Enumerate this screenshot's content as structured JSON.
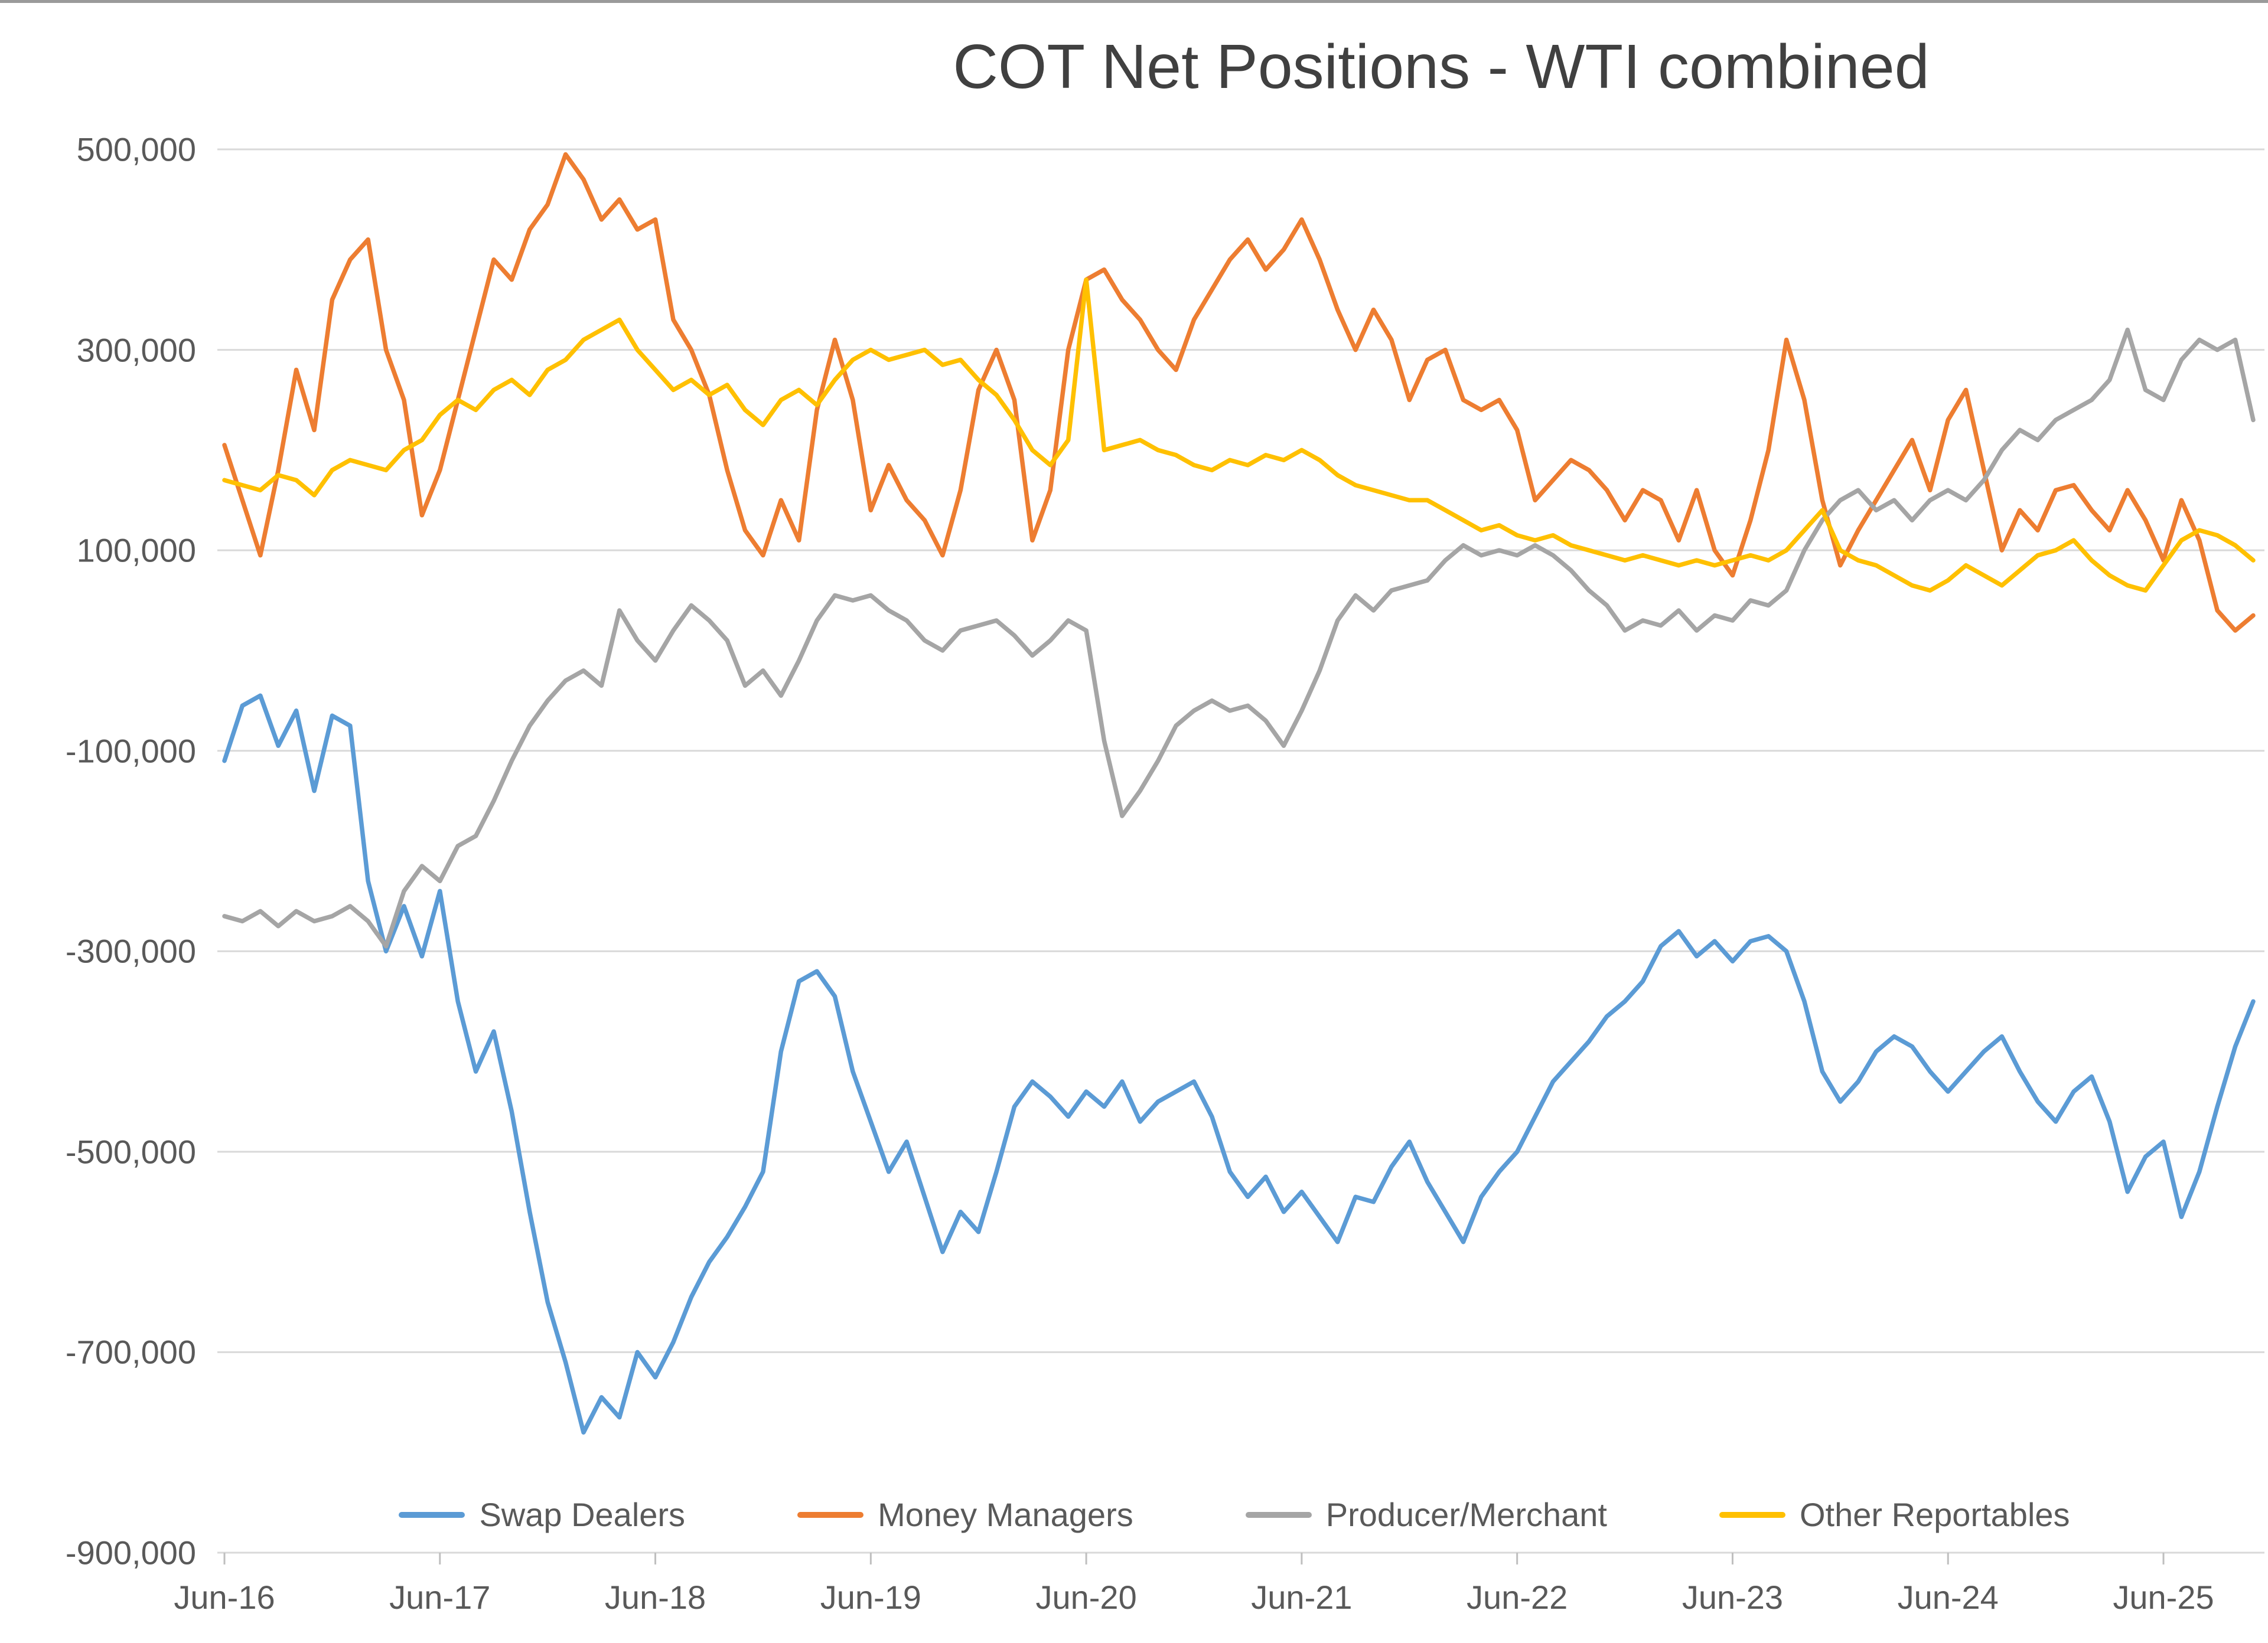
{
  "chart_data": {
    "type": "line",
    "title": "COT Net Positions - WTI combined",
    "legend_position": "bottom",
    "grid": "horizontal",
    "background": "#FFFFFF",
    "colors": {
      "gridline": "#D9D9D9",
      "tick": "#BFBFBF",
      "axis_text": "#595959",
      "title_text": "#404040"
    },
    "y_axis": {
      "min": -900000,
      "max": 500000,
      "ticks": [
        500000,
        300000,
        100000,
        -100000,
        -300000,
        -500000,
        -700000,
        -900000
      ],
      "labels": [
        "500,000",
        "300,000",
        "100,000",
        "-100,000",
        "-300,000",
        "-500,000",
        "-700,000",
        "-900,000"
      ]
    },
    "x_axis": {
      "labels": [
        "Jun-16",
        "Jun-17",
        "Jun-18",
        "Jun-19",
        "Jun-20",
        "Jun-21",
        "Jun-22",
        "Jun-23",
        "Jun-24",
        "Jun-25"
      ],
      "tick_indices": [
        0,
        12,
        24,
        36,
        48,
        60,
        72,
        84,
        96,
        108
      ],
      "points_per_series": 114,
      "interval": "monthly (approx, Jun-2016 to Oct-2025)"
    },
    "series": [
      {
        "id": "swap-dealers",
        "name": "Swap Dealers",
        "color": "#5B9BD5",
        "values": [
          -110000,
          -55000,
          -45000,
          -95000,
          -60000,
          -140000,
          -65000,
          -75000,
          -230000,
          -300000,
          -255000,
          -305000,
          -240000,
          -350000,
          -420000,
          -380000,
          -460000,
          -560000,
          -650000,
          -710000,
          -780000,
          -745000,
          -765000,
          -700000,
          -725000,
          -690000,
          -645000,
          -610000,
          -585000,
          -555000,
          -520000,
          -400000,
          -330000,
          -320000,
          -345000,
          -420000,
          -470000,
          -520000,
          -490000,
          -545000,
          -600000,
          -560000,
          -580000,
          -520000,
          -455000,
          -430000,
          -445000,
          -465000,
          -440000,
          -455000,
          -430000,
          -470000,
          -450000,
          -440000,
          -430000,
          -465000,
          -520000,
          -545000,
          -525000,
          -560000,
          -540000,
          -565000,
          -590000,
          -545000,
          -550000,
          -515000,
          -490000,
          -530000,
          -560000,
          -590000,
          -545000,
          -520000,
          -500000,
          -465000,
          -430000,
          -410000,
          -390000,
          -365000,
          -350000,
          -330000,
          -295000,
          -280000,
          -305000,
          -290000,
          -310000,
          -290000,
          -285000,
          -300000,
          -350000,
          -420000,
          -450000,
          -430000,
          -400000,
          -385000,
          -395000,
          -420000,
          -440000,
          -420000,
          -400000,
          -385000,
          -420000,
          -450000,
          -470000,
          -440000,
          -425000,
          -470000,
          -540000,
          -505000,
          -490000,
          -565000,
          -520000,
          -455000,
          -395000,
          -350000
        ]
      },
      {
        "id": "money-managers",
        "name": "Money Managers",
        "color": "#ED7D31",
        "values": [
          205000,
          150000,
          95000,
          180000,
          280000,
          220000,
          350000,
          390000,
          410000,
          300000,
          250000,
          135000,
          180000,
          250000,
          320000,
          390000,
          370000,
          420000,
          445000,
          495000,
          470000,
          430000,
          450000,
          420000,
          430000,
          330000,
          300000,
          255000,
          180000,
          120000,
          95000,
          150000,
          110000,
          240000,
          310000,
          250000,
          140000,
          185000,
          150000,
          130000,
          95000,
          160000,
          260000,
          300000,
          250000,
          110000,
          160000,
          300000,
          370000,
          380000,
          350000,
          330000,
          300000,
          280000,
          330000,
          360000,
          390000,
          410000,
          380000,
          400000,
          430000,
          390000,
          340000,
          300000,
          340000,
          310000,
          250000,
          290000,
          300000,
          250000,
          240000,
          250000,
          220000,
          150000,
          170000,
          190000,
          180000,
          160000,
          130000,
          160000,
          150000,
          110000,
          160000,
          100000,
          75000,
          130000,
          200000,
          310000,
          250000,
          150000,
          85000,
          120000,
          150000,
          180000,
          210000,
          160000,
          230000,
          260000,
          180000,
          100000,
          140000,
          120000,
          160000,
          165000,
          140000,
          120000,
          160000,
          130000,
          90000,
          150000,
          110000,
          40000,
          20000,
          35000
        ]
      },
      {
        "id": "producer-merchant",
        "name": "Producer/Merchant",
        "color": "#A5A5A5",
        "values": [
          -265000,
          -270000,
          -260000,
          -275000,
          -260000,
          -270000,
          -265000,
          -255000,
          -270000,
          -295000,
          -240000,
          -215000,
          -230000,
          -195000,
          -185000,
          -150000,
          -110000,
          -75000,
          -50000,
          -30000,
          -20000,
          -35000,
          40000,
          10000,
          -10000,
          20000,
          45000,
          30000,
          10000,
          -35000,
          -20000,
          -45000,
          -10000,
          30000,
          55000,
          50000,
          55000,
          40000,
          30000,
          10000,
          0,
          20000,
          25000,
          30000,
          15000,
          -5000,
          10000,
          30000,
          20000,
          -90000,
          -165000,
          -140000,
          -110000,
          -75000,
          -60000,
          -50000,
          -60000,
          -55000,
          -70000,
          -95000,
          -60000,
          -20000,
          30000,
          55000,
          40000,
          60000,
          65000,
          70000,
          90000,
          105000,
          95000,
          100000,
          95000,
          105000,
          95000,
          80000,
          60000,
          45000,
          20000,
          30000,
          25000,
          40000,
          20000,
          35000,
          30000,
          50000,
          45000,
          60000,
          100000,
          130000,
          150000,
          160000,
          140000,
          150000,
          130000,
          150000,
          160000,
          150000,
          170000,
          200000,
          220000,
          210000,
          230000,
          240000,
          250000,
          270000,
          320000,
          260000,
          250000,
          290000,
          310000,
          300000,
          310000,
          230000
        ]
      },
      {
        "id": "other-reportables",
        "name": "Other Reportables",
        "color": "#FFC000",
        "values": [
          170000,
          165000,
          160000,
          175000,
          170000,
          155000,
          180000,
          190000,
          185000,
          180000,
          200000,
          210000,
          235000,
          250000,
          240000,
          260000,
          270000,
          255000,
          280000,
          290000,
          310000,
          320000,
          330000,
          300000,
          280000,
          260000,
          270000,
          255000,
          265000,
          240000,
          225000,
          250000,
          260000,
          245000,
          270000,
          290000,
          300000,
          290000,
          295000,
          300000,
          285000,
          290000,
          270000,
          255000,
          230000,
          200000,
          185000,
          210000,
          370000,
          200000,
          205000,
          210000,
          200000,
          195000,
          185000,
          180000,
          190000,
          185000,
          195000,
          190000,
          200000,
          190000,
          175000,
          165000,
          160000,
          155000,
          150000,
          150000,
          140000,
          130000,
          120000,
          125000,
          115000,
          110000,
          115000,
          105000,
          100000,
          95000,
          90000,
          95000,
          90000,
          85000,
          90000,
          85000,
          90000,
          95000,
          90000,
          100000,
          120000,
          140000,
          100000,
          90000,
          85000,
          75000,
          65000,
          60000,
          70000,
          85000,
          75000,
          65000,
          80000,
          95000,
          100000,
          110000,
          90000,
          75000,
          65000,
          60000,
          85000,
          110000,
          120000,
          115000,
          105000,
          90000
        ]
      }
    ]
  }
}
